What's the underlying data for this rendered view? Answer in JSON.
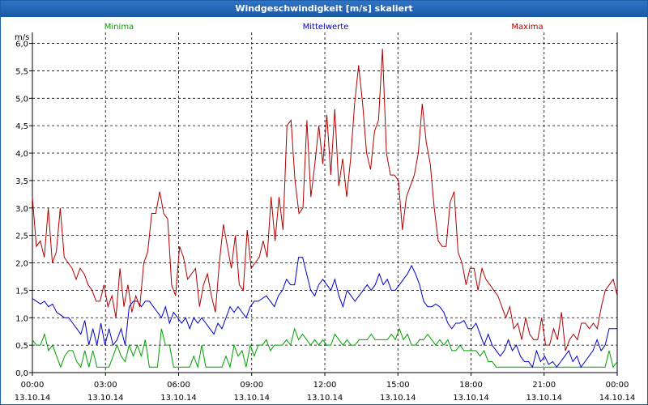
{
  "window": {
    "title": "Windgeschwindigkeit [m/s] skaliert"
  },
  "chart_data": {
    "type": "line",
    "title": "Windgeschwindigkeit [m/s] skaliert",
    "ylabel": "m/s",
    "ylim": [
      0,
      6.2
    ],
    "y_ticks": [
      "0,0",
      "0,5",
      "1,0",
      "1,5",
      "2,0",
      "2,5",
      "3,0",
      "3,5",
      "4,0",
      "4,5",
      "5,0",
      "5,5",
      "6,0"
    ],
    "x_ticks": [
      {
        "time": "00:00",
        "date": "13.10.14"
      },
      {
        "time": "03:00",
        "date": "13.10.14"
      },
      {
        "time": "06:00",
        "date": "13.10.14"
      },
      {
        "time": "09:00",
        "date": "13.10.14"
      },
      {
        "time": "12:00",
        "date": "13.10.14"
      },
      {
        "time": "15:00",
        "date": "13.10.14"
      },
      {
        "time": "18:00",
        "date": "13.10.14"
      },
      {
        "time": "21:00",
        "date": "13.10.14"
      },
      {
        "time": "00:00",
        "date": "14.10.14"
      }
    ],
    "x_range_hours": [
      0,
      24
    ],
    "grid": true,
    "legend_position": "top",
    "series": [
      {
        "name": "Minima",
        "color": "#00a000",
        "values": [
          0.6,
          0.5,
          0.5,
          0.7,
          0.4,
          0.5,
          0.3,
          0.1,
          0.3,
          0.4,
          0.4,
          0.2,
          0.1,
          0.4,
          0.1,
          0.4,
          0.1,
          0.1,
          0.1,
          0.1,
          0.3,
          0.5,
          0.3,
          0.2,
          0.5,
          0.3,
          0.5,
          0.3,
          0.6,
          0.1,
          0.1,
          0.1,
          0.8,
          0.5,
          0.5,
          0.1,
          0.1,
          0.1,
          0.1,
          0.1,
          0.3,
          0.1,
          0.5,
          0.1,
          0.1,
          0.1,
          0.1,
          0.1,
          0.3,
          0.1,
          0.5,
          0.3,
          0.4,
          0.1,
          0.5,
          0.3,
          0.5,
          0.5,
          0.6,
          0.4,
          0.5,
          0.5,
          0.5,
          0.6,
          0.5,
          0.8,
          0.6,
          0.7,
          0.6,
          0.5,
          0.6,
          0.5,
          0.6,
          0.5,
          0.5,
          0.7,
          0.6,
          0.5,
          0.6,
          0.5,
          0.5,
          0.6,
          0.6,
          0.6,
          0.7,
          0.6,
          0.6,
          0.6,
          0.6,
          0.7,
          0.6,
          0.8,
          0.6,
          0.7,
          0.5,
          0.5,
          0.6,
          0.6,
          0.7,
          0.6,
          0.5,
          0.6,
          0.5,
          0.6,
          0.4,
          0.4,
          0.5,
          0.4,
          0.4,
          0.4,
          0.4,
          0.3,
          0.4,
          0.2,
          0.2,
          0.1,
          0.1,
          0.1,
          0.1,
          0.1,
          0.1,
          0.1,
          0.1,
          0.1,
          0.1,
          0.1,
          0.1,
          0.1,
          0.1,
          0.1,
          0.1,
          0.1,
          0.1,
          0.1,
          0.1,
          0.1,
          0.1,
          0.1,
          0.1,
          0.1,
          0.1,
          0.1,
          0.1,
          0.4,
          0.1,
          0.2
        ]
      },
      {
        "name": "Mittelwerte",
        "color": "#0000c8",
        "values": [
          1.35,
          1.3,
          1.25,
          1.3,
          1.2,
          1.25,
          1.1,
          1.05,
          1.0,
          1.0,
          0.9,
          0.8,
          0.7,
          0.95,
          0.5,
          0.8,
          0.5,
          0.9,
          0.5,
          0.8,
          0.5,
          0.6,
          0.8,
          0.5,
          1.2,
          1.3,
          1.3,
          1.2,
          1.3,
          1.3,
          1.2,
          1.1,
          1.0,
          1.2,
          0.9,
          1.1,
          1.0,
          0.9,
          1.0,
          0.8,
          1.0,
          0.9,
          1.0,
          0.9,
          0.8,
          0.7,
          0.9,
          0.8,
          1.0,
          1.2,
          1.1,
          1.2,
          1.1,
          1.0,
          1.2,
          1.3,
          1.3,
          1.35,
          1.4,
          1.3,
          1.2,
          1.4,
          1.5,
          1.7,
          1.6,
          1.6,
          2.1,
          2.1,
          1.8,
          1.5,
          1.4,
          1.6,
          1.7,
          1.6,
          1.5,
          1.7,
          1.4,
          1.2,
          1.5,
          1.4,
          1.3,
          1.4,
          1.5,
          1.6,
          1.5,
          1.6,
          1.8,
          1.6,
          1.7,
          1.5,
          1.5,
          1.6,
          1.7,
          1.8,
          1.95,
          1.8,
          1.6,
          1.3,
          1.2,
          1.2,
          1.25,
          1.2,
          1.1,
          0.9,
          0.8,
          0.9,
          0.9,
          0.95,
          0.8,
          0.8,
          0.9,
          0.7,
          0.5,
          0.7,
          0.5,
          0.4,
          0.3,
          0.4,
          0.6,
          0.4,
          0.5,
          0.3,
          0.2,
          0.2,
          0.1,
          0.4,
          0.2,
          0.3,
          0.15,
          0.2,
          0.1,
          0.2,
          0.3,
          0.4,
          0.2,
          0.3,
          0.1,
          0.2,
          0.3,
          0.4,
          0.6,
          0.4,
          0.5,
          0.8,
          0.8,
          0.8
        ]
      },
      {
        "name": "Maxima",
        "color": "#b00000",
        "values": [
          3.2,
          2.3,
          2.4,
          2.1,
          3.0,
          2.0,
          2.2,
          3.0,
          2.1,
          2.0,
          1.9,
          1.7,
          1.9,
          1.8,
          1.6,
          1.5,
          1.3,
          1.3,
          1.6,
          1.2,
          1.4,
          1.0,
          1.9,
          1.2,
          1.6,
          1.1,
          1.4,
          1.2,
          2.0,
          2.2,
          2.9,
          2.9,
          3.3,
          2.9,
          2.8,
          1.6,
          1.4,
          2.3,
          2.1,
          1.7,
          1.8,
          1.9,
          1.2,
          1.6,
          1.8,
          1.4,
          1.1,
          2.0,
          2.7,
          2.3,
          1.9,
          2.5,
          1.6,
          1.5,
          2.6,
          1.9,
          2.0,
          2.1,
          2.4,
          2.1,
          3.2,
          2.4,
          3.2,
          2.6,
          4.5,
          4.6,
          3.5,
          2.9,
          3.0,
          4.6,
          3.2,
          3.8,
          4.5,
          3.8,
          4.7,
          3.6,
          4.8,
          3.4,
          3.9,
          3.2,
          3.9,
          4.9,
          5.6,
          4.9,
          4.0,
          3.7,
          4.4,
          4.6,
          5.9,
          4.0,
          3.6,
          3.6,
          3.5,
          2.6,
          3.2,
          3.4,
          3.6,
          4.0,
          4.9,
          4.2,
          3.8,
          3.0,
          2.4,
          2.3,
          2.3,
          3.1,
          3.3,
          2.2,
          2.0,
          1.6,
          1.9,
          1.9,
          1.5,
          1.9,
          1.7,
          1.6,
          1.5,
          1.4,
          1.2,
          1.0,
          1.2,
          0.8,
          0.9,
          0.6,
          1.0,
          0.7,
          0.6,
          0.6,
          1.0,
          0.5,
          0.5,
          0.8,
          0.6,
          1.1,
          0.4,
          0.6,
          0.7,
          0.6,
          0.9,
          0.9,
          0.8,
          0.9,
          0.8,
          1.2,
          1.5,
          1.6,
          1.7,
          1.4
        ]
      }
    ]
  }
}
